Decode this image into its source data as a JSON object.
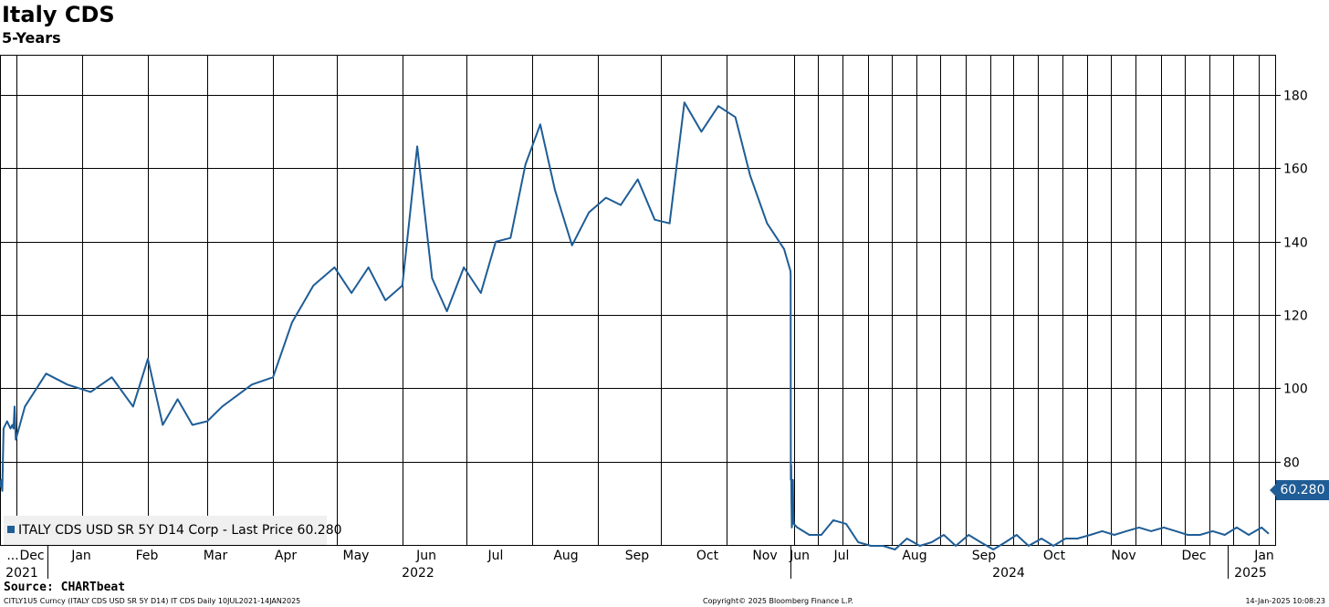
{
  "chart_data": {
    "type": "line",
    "title": "Italy CDS",
    "subtitle": "5-Years",
    "ylim": [
      57,
      191
    ],
    "y_ticks": [
      80,
      100,
      120,
      140,
      160,
      180
    ],
    "grid": true,
    "legend_position": "bottom-left",
    "x_month_labels": [
      "...",
      "Dec",
      "Jan",
      "Feb",
      "Mar",
      "Apr",
      "May",
      "Jun",
      "Jul",
      "Aug",
      "Sep",
      "Oct",
      "Nov",
      "Jun",
      "Jul",
      "Aug",
      "Sep",
      "Oct",
      "Nov",
      "Dec",
      "Jan"
    ],
    "year_labels": [
      "2021",
      "2022",
      "2024",
      "2025"
    ],
    "series": [
      {
        "name": "ITALY CDS USD SR 5Y D14 Corp - Last Price 60.280",
        "color": "#1f5d96",
        "x": [
          "2021-07-10",
          "2021-07-20",
          "2021-07-30",
          "2021-08-10",
          "2021-08-25",
          "2021-09-10",
          "2021-09-25",
          "2021-10-10",
          "2021-10-25",
          "2021-11-05",
          "2021-11-15",
          "2021-11-25",
          "2021-12-05",
          "2021-12-15",
          "2021-12-25",
          "2022-01-05",
          "2022-01-15",
          "2022-01-25",
          "2022-02-01",
          "2022-02-08",
          "2022-02-15",
          "2022-02-22",
          "2022-03-01",
          "2022-03-08",
          "2022-03-15",
          "2022-03-22",
          "2022-04-01",
          "2022-04-10",
          "2022-04-20",
          "2022-04-30",
          "2022-05-08",
          "2022-05-16",
          "2022-05-24",
          "2022-06-01",
          "2022-06-08",
          "2022-06-15",
          "2022-06-22",
          "2022-06-30",
          "2022-07-08",
          "2022-07-15",
          "2022-07-22",
          "2022-07-29",
          "2022-08-05",
          "2022-08-12",
          "2022-08-20",
          "2022-08-28",
          "2022-09-05",
          "2022-09-12",
          "2022-09-20",
          "2022-09-28",
          "2022-10-05",
          "2022-10-12",
          "2022-10-20",
          "2022-10-28",
          "2022-11-05",
          "2022-11-12",
          "2022-11-20",
          "2022-11-28",
          "2022-12-01",
          "2022-12-10",
          "2022-12-20",
          "2023-01-05",
          "2023-01-20",
          "2023-02-05",
          "2023-02-20",
          "2023-03-05",
          "2023-03-20",
          "2023-04-05",
          "2023-04-20",
          "2023-05-05",
          "2023-05-20",
          "2023-06-05",
          "2023-06-20",
          "2023-07-05",
          "2023-07-20",
          "2023-08-05",
          "2023-08-20",
          "2023-09-05",
          "2023-09-20",
          "2023-10-05",
          "2023-10-20",
          "2023-11-05",
          "2023-11-20",
          "2023-12-05",
          "2023-12-20",
          "2024-01-05",
          "2024-01-20",
          "2024-02-05",
          "2024-02-20",
          "2024-03-05",
          "2024-03-20",
          "2024-04-05",
          "2024-04-20",
          "2024-05-05",
          "2024-05-20",
          "2024-06-05",
          "2024-06-20",
          "2024-07-05",
          "2024-07-20",
          "2024-08-05",
          "2024-08-20",
          "2024-09-05",
          "2024-09-20",
          "2024-10-05",
          "2024-10-20",
          "2024-11-05",
          "2024-11-20",
          "2024-12-05",
          "2024-12-20",
          "2025-01-05",
          "2025-01-14"
        ],
        "y": [
          73,
          75,
          72,
          89,
          90,
          91,
          90,
          89,
          90,
          89,
          95,
          86,
          95,
          104,
          101,
          99,
          103,
          95,
          108,
          90,
          97,
          90,
          91,
          95,
          98,
          101,
          103,
          118,
          128,
          133,
          126,
          133,
          124,
          128,
          166,
          130,
          121,
          133,
          126,
          140,
          141,
          161,
          172,
          154,
          139,
          148,
          152,
          150,
          157,
          146,
          145,
          178,
          170,
          177,
          174,
          158,
          145,
          138,
          132,
          131,
          75,
          79,
          69,
          62,
          63,
          64,
          66,
          75,
          66,
          64,
          63,
          62,
          60,
          60,
          64,
          63,
          58,
          57,
          57,
          56,
          59,
          57,
          58,
          60,
          57,
          60,
          58,
          56,
          58,
          60,
          57,
          59,
          57,
          59,
          59,
          60,
          61,
          60,
          61,
          62,
          61,
          62,
          61,
          60,
          60,
          61,
          60,
          62,
          60,
          62,
          60.28
        ]
      }
    ]
  },
  "legend_text": "ITALY CDS USD SR 5Y D14 Corp - Last Price 60.280",
  "last_value_label": "60.280",
  "source": "Source: CHARTbeat",
  "footer_left": "CITLY1U5 Curncy (ITALY CDS USD SR 5Y D14) IT CDS  Daily 10JUL2021-14JAN2025",
  "footer_center": "Copyright© 2025 Bloomberg Finance L.P.",
  "footer_right": "14-Jan-2025 10:08:23"
}
